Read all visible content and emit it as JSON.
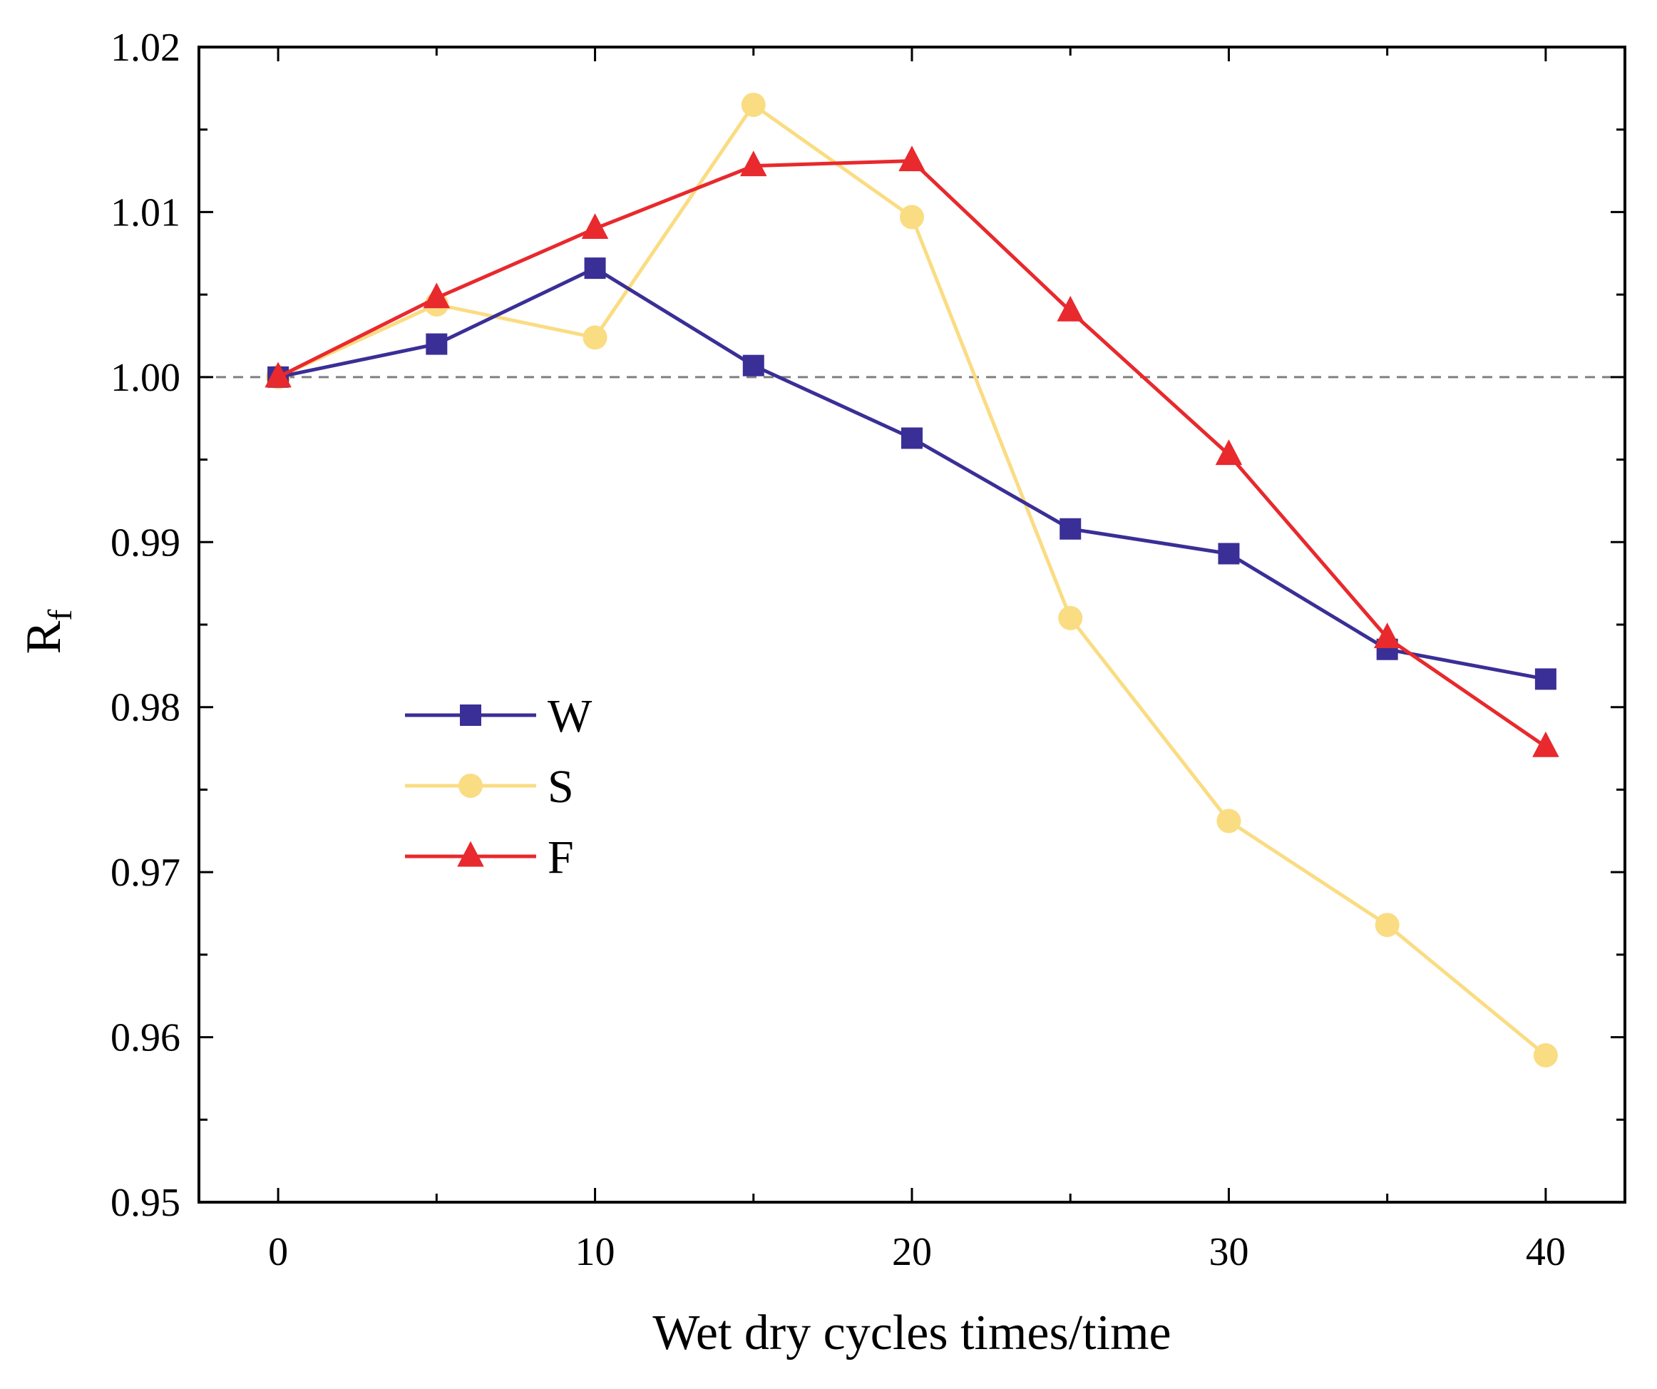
{
  "chart_data": {
    "type": "line",
    "title": "",
    "xlabel": "Wet dry cycles times/time",
    "ylabel_main": "R",
    "ylabel_sub": "f",
    "xlim": [
      -2.5,
      42.5
    ],
    "ylim": [
      0.95,
      1.02
    ],
    "x": [
      0,
      5,
      10,
      15,
      20,
      25,
      30,
      35,
      40
    ],
    "xticks": [
      0,
      10,
      20,
      30,
      40
    ],
    "xtick_labels": [
      "0",
      "10",
      "20",
      "30",
      "40"
    ],
    "yticks": [
      0.95,
      0.96,
      0.97,
      0.98,
      0.99,
      1.0,
      1.01,
      1.02
    ],
    "ytick_labels": [
      "0.95",
      "0.96",
      "0.97",
      "0.98",
      "0.99",
      "1.00",
      "1.01",
      "1.02"
    ],
    "reference_line": {
      "y": 1.0,
      "style": "dashed",
      "color": "#808080"
    },
    "legend_position": "center-left",
    "series": [
      {
        "name": "W",
        "marker": "square",
        "color": "#3a2f96",
        "values": [
          1.0,
          1.002,
          1.0066,
          1.0007,
          0.9963,
          0.9908,
          0.9893,
          0.9835,
          0.9817
        ]
      },
      {
        "name": "S",
        "marker": "circle",
        "color": "#fadc82",
        "values": [
          1.0,
          1.0044,
          1.0024,
          1.0165,
          1.0097,
          0.9854,
          0.9731,
          0.9668,
          0.9589
        ]
      },
      {
        "name": "F",
        "marker": "triangle",
        "color": "#e8292d",
        "values": [
          1.0,
          1.0048,
          1.009,
          1.0128,
          1.0131,
          1.004,
          0.9953,
          0.9842,
          0.9776
        ]
      }
    ]
  }
}
